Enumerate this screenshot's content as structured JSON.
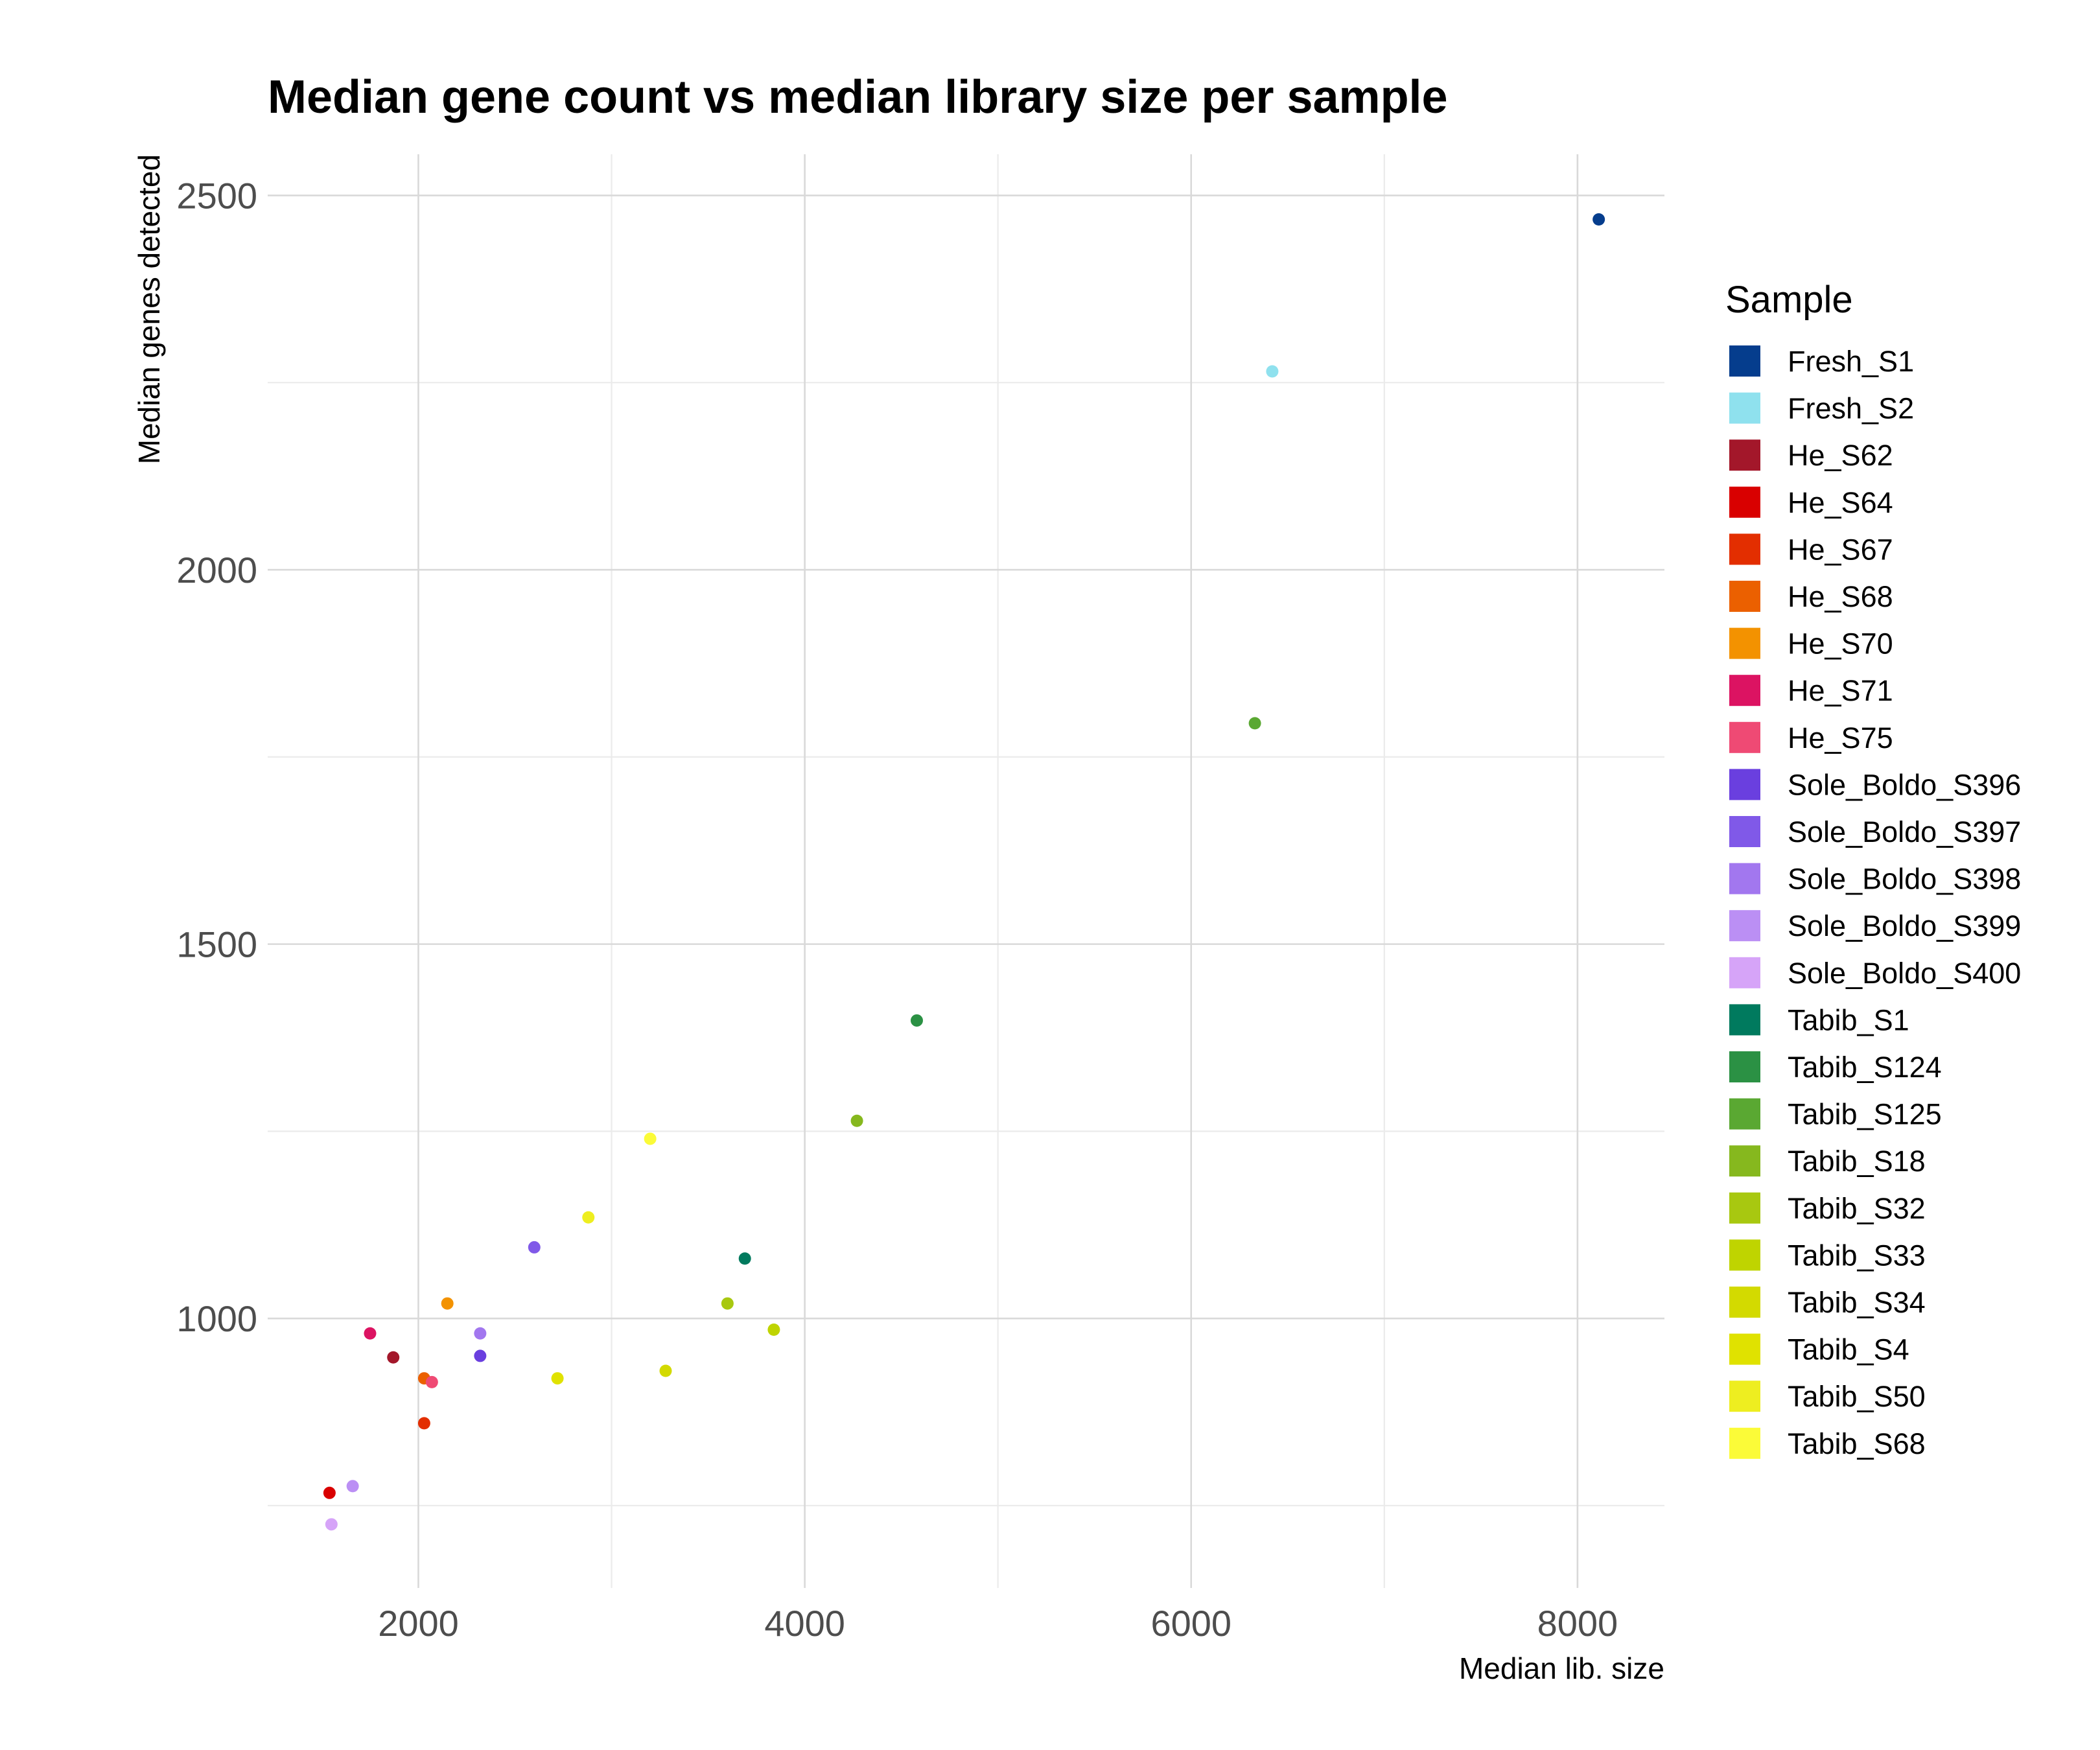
{
  "chart_data": {
    "type": "scatter",
    "title": "Median gene count vs median library size per sample",
    "xlabel": "Median lib. size",
    "ylabel": "Median genes detected",
    "xlim": [
      1220,
      8450
    ],
    "ylim": [
      640,
      2555
    ],
    "x_ticks": [
      2000,
      4000,
      6000,
      8000
    ],
    "x_tick_labels": [
      "2000",
      "4000",
      "6000",
      "8000"
    ],
    "x_minor_ticks": [
      3000,
      5000,
      7000
    ],
    "y_ticks": [
      1000,
      1500,
      2000,
      2500
    ],
    "y_tick_labels": [
      "1000",
      "1500",
      "2000",
      "2500"
    ],
    "y_minor_ticks": [
      750,
      1250,
      1750,
      2250
    ],
    "grid": true,
    "legend_title": "Sample",
    "legend_position": "right",
    "series": [
      {
        "name": "Fresh_S1",
        "color": "#053d8d",
        "x": 8110,
        "y": 2468
      },
      {
        "name": "Fresh_S2",
        "color": "#8fe1ee",
        "x": 6420,
        "y": 2265
      },
      {
        "name": "He_S62",
        "color": "#a3172a",
        "x": 1870,
        "y": 948
      },
      {
        "name": "He_S64",
        "color": "#d90000",
        "x": 1540,
        "y": 767
      },
      {
        "name": "He_S67",
        "color": "#e32e00",
        "x": 2030,
        "y": 860
      },
      {
        "name": "He_S68",
        "color": "#eb6000",
        "x": 2030,
        "y": 920
      },
      {
        "name": "He_S70",
        "color": "#f39200",
        "x": 2150,
        "y": 1020
      },
      {
        "name": "He_S71",
        "color": "#dc1362",
        "x": 1750,
        "y": 980
      },
      {
        "name": "He_S75",
        "color": "#ef4a74",
        "x": 2070,
        "y": 915
      },
      {
        "name": "Sole_Boldo_S396",
        "color": "#6a3fdf",
        "x": 2320,
        "y": 950
      },
      {
        "name": "Sole_Boldo_S397",
        "color": "#8059e8",
        "x": 2600,
        "y": 1095
      },
      {
        "name": "Sole_Boldo_S398",
        "color": "#a277ef",
        "x": 2320,
        "y": 980
      },
      {
        "name": "Sole_Boldo_S399",
        "color": "#bb8ff4",
        "x": 1660,
        "y": 776
      },
      {
        "name": "Sole_Boldo_S400",
        "color": "#d6a4f8",
        "x": 1550,
        "y": 725
      },
      {
        "name": "Tabib_S1",
        "color": "#007a5e",
        "x": 3690,
        "y": 1080
      },
      {
        "name": "Tabib_S124",
        "color": "#2b9144",
        "x": 4580,
        "y": 1398
      },
      {
        "name": "Tabib_S125",
        "color": "#5aa832",
        "x": 6330,
        "y": 1795
      },
      {
        "name": "Tabib_S18",
        "color": "#86b81e",
        "x": 4270,
        "y": 1264
      },
      {
        "name": "Tabib_S32",
        "color": "#a8c810",
        "x": 3600,
        "y": 1020
      },
      {
        "name": "Tabib_S33",
        "color": "#bfd400",
        "x": 3840,
        "y": 985
      },
      {
        "name": "Tabib_S34",
        "color": "#d3da00",
        "x": 3280,
        "y": 930
      },
      {
        "name": "Tabib_S4",
        "color": "#e0e200",
        "x": 2720,
        "y": 920
      },
      {
        "name": "Tabib_S50",
        "color": "#eeee20",
        "x": 2880,
        "y": 1135
      },
      {
        "name": "Tabib_S68",
        "color": "#fbfb38",
        "x": 3200,
        "y": 1240
      }
    ]
  }
}
